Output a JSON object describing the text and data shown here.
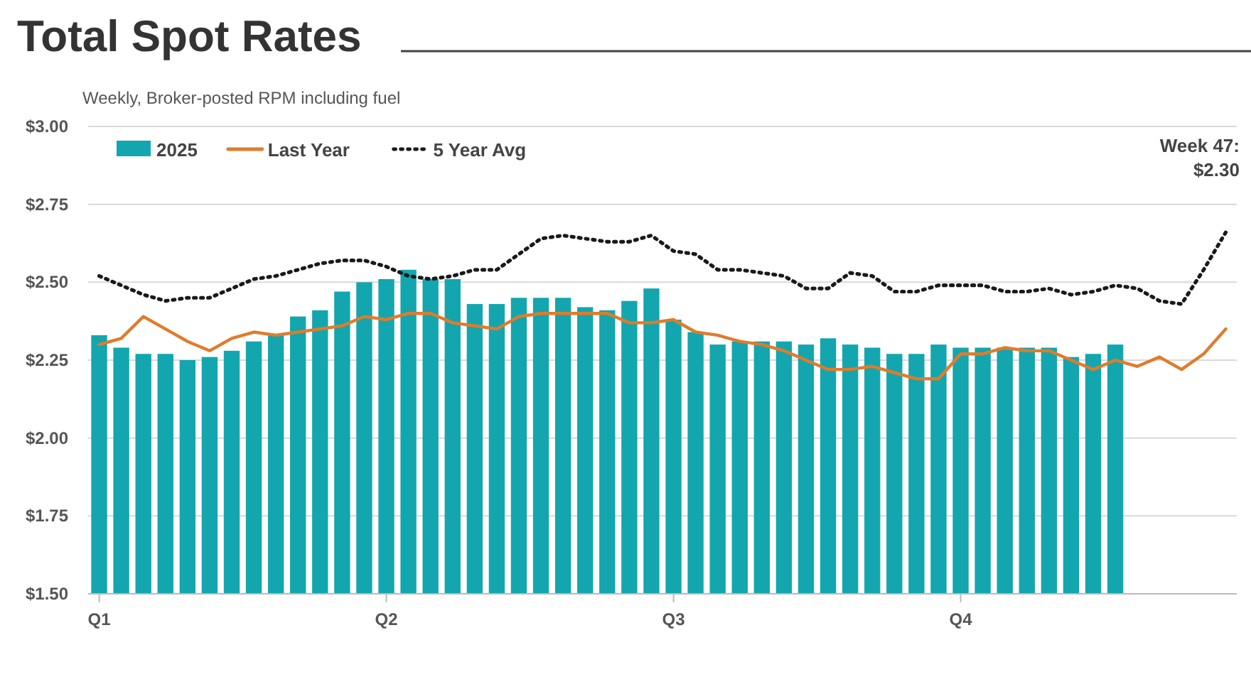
{
  "chart_data": {
    "type": "bar",
    "title": "Total Spot Rates",
    "subtitle": "Weekly, Broker-posted RPM including fuel",
    "categories": [
      "Q1",
      null,
      null,
      null,
      null,
      null,
      null,
      null,
      null,
      null,
      null,
      null,
      null,
      "Q2",
      null,
      null,
      null,
      null,
      null,
      null,
      null,
      null,
      null,
      null,
      null,
      null,
      "Q3",
      null,
      null,
      null,
      null,
      null,
      null,
      null,
      null,
      null,
      null,
      null,
      null,
      "Q4",
      null,
      null,
      null,
      null,
      null,
      null,
      null,
      null,
      null,
      null,
      null,
      null
    ],
    "ylim": [
      1.5,
      3.0
    ],
    "yticks": [
      {
        "value": 1.5,
        "label": "$1.50"
      },
      {
        "value": 1.75,
        "label": "$1.75"
      },
      {
        "value": 2.0,
        "label": "$2.00"
      },
      {
        "value": 2.25,
        "label": "$2.25"
      },
      {
        "value": 2.5,
        "label": "$2.50"
      },
      {
        "value": 2.75,
        "label": "$2.75"
      },
      {
        "value": 3.0,
        "label": "$3.00"
      }
    ],
    "grid": "y",
    "legend": "top left",
    "annotations": [
      "Week 47:\n$2.30"
    ],
    "series": [
      {
        "name": "2025",
        "color": "#13a6ae",
        "values": [
          2.33,
          2.29,
          2.27,
          2.27,
          2.25,
          2.26,
          2.28,
          2.31,
          2.33,
          2.39,
          2.41,
          2.47,
          2.5,
          2.51,
          2.54,
          2.51,
          2.51,
          2.43,
          2.43,
          2.45,
          2.45,
          2.45,
          2.42,
          2.41,
          2.44,
          2.48,
          2.38,
          2.34,
          2.3,
          2.31,
          2.31,
          2.31,
          2.3,
          2.32,
          2.3,
          2.29,
          2.27,
          2.27,
          2.3,
          2.29,
          2.29,
          2.29,
          2.29,
          2.29,
          2.26,
          2.27,
          2.3,
          null,
          null,
          null,
          null,
          null
        ]
      },
      {
        "name": "Last Year",
        "type": "line",
        "color": "#e07b2c",
        "line_style": "solid",
        "values": [
          2.3,
          2.32,
          2.39,
          2.35,
          2.31,
          2.28,
          2.32,
          2.34,
          2.33,
          2.34,
          2.35,
          2.36,
          2.39,
          2.38,
          2.4,
          2.4,
          2.37,
          2.36,
          2.35,
          2.39,
          2.4,
          2.4,
          2.4,
          2.4,
          2.37,
          2.37,
          2.38,
          2.34,
          2.33,
          2.31,
          2.3,
          2.28,
          2.25,
          2.22,
          2.22,
          2.23,
          2.21,
          2.19,
          2.19,
          2.27,
          2.27,
          2.29,
          2.28,
          2.28,
          2.25,
          2.22,
          2.25,
          2.23,
          2.26,
          2.22,
          2.27,
          2.35
        ]
      },
      {
        "name": "5 Year Avg",
        "type": "line",
        "color": "#1a1a1a",
        "line_style": "dotted",
        "values": [
          2.52,
          2.49,
          2.46,
          2.44,
          2.45,
          2.45,
          2.48,
          2.51,
          2.52,
          2.54,
          2.56,
          2.57,
          2.57,
          2.55,
          2.52,
          2.51,
          2.52,
          2.54,
          2.54,
          2.59,
          2.64,
          2.65,
          2.64,
          2.63,
          2.63,
          2.65,
          2.6,
          2.59,
          2.54,
          2.54,
          2.53,
          2.52,
          2.48,
          2.48,
          2.53,
          2.52,
          2.47,
          2.47,
          2.49,
          2.49,
          2.49,
          2.47,
          2.47,
          2.48,
          2.46,
          2.47,
          2.49,
          2.48,
          2.44,
          2.43,
          2.54,
          2.66
        ]
      }
    ]
  }
}
